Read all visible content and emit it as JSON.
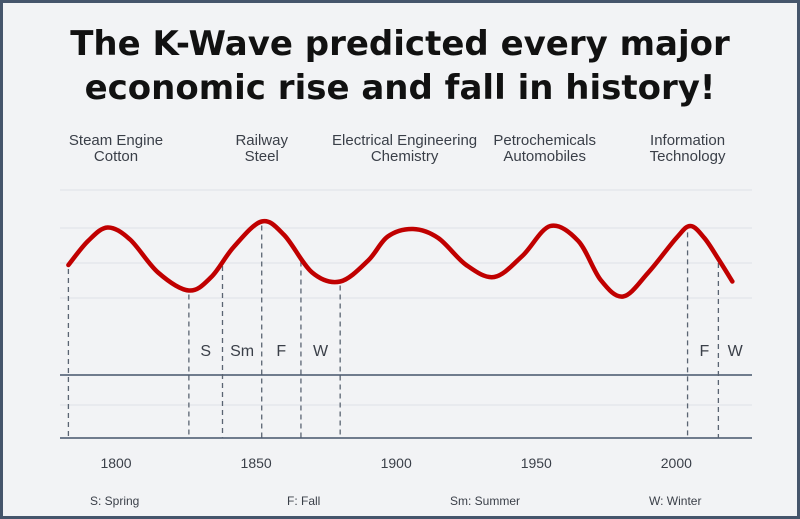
{
  "title_lines": [
    "The K-Wave predicted every major",
    "economic rise and fall in history!"
  ],
  "chart_data": {
    "type": "line",
    "x_ticks": [
      1800,
      1850,
      1900,
      1950,
      2000
    ],
    "xlim": [
      1780,
      2027
    ],
    "grid": true,
    "series": [
      {
        "color": "#c00000",
        "points": [
          [
            1783,
            50
          ],
          [
            1790,
            66
          ],
          [
            1797,
            75
          ],
          [
            1805,
            67
          ],
          [
            1815,
            45
          ],
          [
            1826,
            33
          ],
          [
            1834,
            42
          ],
          [
            1842,
            62
          ],
          [
            1852,
            79
          ],
          [
            1860,
            70
          ],
          [
            1870,
            45
          ],
          [
            1880,
            39
          ],
          [
            1890,
            53
          ],
          [
            1897,
            69
          ],
          [
            1906,
            74
          ],
          [
            1915,
            68
          ],
          [
            1925,
            50
          ],
          [
            1935,
            42
          ],
          [
            1945,
            56
          ],
          [
            1955,
            76
          ],
          [
            1965,
            66
          ],
          [
            1973,
            40
          ],
          [
            1981,
            29
          ],
          [
            1990,
            45
          ],
          [
            2000,
            68
          ],
          [
            2005,
            76
          ],
          [
            2010,
            68
          ],
          [
            2015,
            54
          ],
          [
            2020,
            39
          ]
        ]
      }
    ],
    "wave_labels": [
      {
        "lines": [
          "Steam Engine",
          "Cotton"
        ],
        "x": 1800
      },
      {
        "lines": [
          "Railway",
          "Steel"
        ],
        "x": 1852
      },
      {
        "lines": [
          "Electrical Engineering",
          "Chemistry"
        ],
        "x": 1903
      },
      {
        "lines": [
          "Petrochemicals",
          "Automobiles"
        ],
        "x": 1953
      },
      {
        "lines": [
          "Information",
          "Technology"
        ],
        "x": 2004
      }
    ],
    "phase_markers": [
      1783,
      1826,
      1838,
      1852,
      1866,
      1880,
      2004,
      2015
    ],
    "phase_labels": [
      {
        "text": "S",
        "x": 1832
      },
      {
        "text": "Sm",
        "x": 1845
      },
      {
        "text": "F",
        "x": 1859
      },
      {
        "text": "W",
        "x": 1873
      },
      {
        "text": "F",
        "x": 2010
      },
      {
        "text": "W",
        "x": 2021
      }
    ]
  },
  "legend": [
    {
      "text": "S: Spring"
    },
    {
      "text": "F: Fall"
    },
    {
      "text": "Sm: Summer"
    },
    {
      "text": "W: Winter"
    }
  ],
  "colors": {
    "wave": "#c00000",
    "border": "#45556b",
    "grid": "#dfe2e6",
    "axis": "#45556b",
    "marker": "#5a6472",
    "text": "#3a3f48"
  }
}
